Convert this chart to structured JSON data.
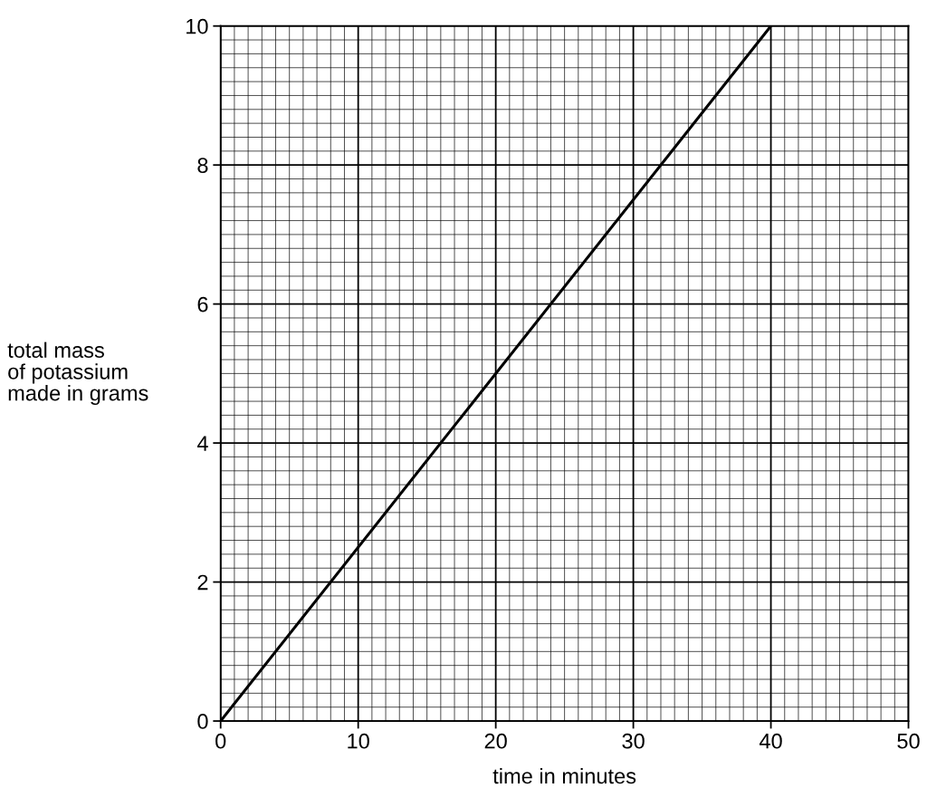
{
  "chart_data": {
    "type": "line",
    "xlabel": "time in minutes",
    "ylabel": "total mass\nof potassium\nmade in grams",
    "x": [
      0,
      40
    ],
    "series": [
      {
        "color": "#000000",
        "values": [
          0,
          10
        ]
      }
    ],
    "xlim": [
      0,
      50
    ],
    "ylim": [
      0,
      10
    ],
    "xticks": [
      0,
      10,
      20,
      30,
      40,
      50
    ],
    "yticks": [
      0,
      2,
      4,
      6,
      8,
      10
    ],
    "grid": true,
    "marker": "none",
    "line_style": "solid"
  }
}
